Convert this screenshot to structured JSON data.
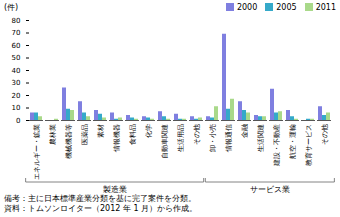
{
  "chart_data": {
    "type": "bar",
    "y_label": "(件)",
    "categories": [
      "エネルギー・鉱業",
      "農林業",
      "機械機器等",
      "医薬品",
      "素材",
      "情報機器",
      "食料品",
      "化学",
      "自動車関連",
      "生活用品",
      "その他",
      "卸・小売",
      "情報通信",
      "金融",
      "生活関連",
      "建設・不動産",
      "航空・運輸",
      "教育サービス",
      "その他"
    ],
    "series": [
      {
        "name": "2000",
        "color": "#7f7fe0",
        "values": [
          6,
          0,
          26,
          15,
          8,
          6,
          4,
          3,
          7,
          5,
          3,
          3,
          69,
          15,
          4,
          25,
          8,
          0,
          11
        ]
      },
      {
        "name": "2005",
        "color": "#35a9c9",
        "values": [
          6,
          0,
          9,
          6,
          5,
          1,
          2,
          2,
          3,
          1,
          1,
          2,
          9,
          8,
          3,
          6,
          3,
          1,
          4
        ]
      },
      {
        "name": "2011",
        "color": "#a9d98a",
        "values": [
          3,
          1,
          8,
          3,
          2,
          2,
          1,
          1,
          1,
          1,
          2,
          11,
          17,
          6,
          3,
          7,
          1,
          1,
          6
        ]
      }
    ],
    "groups": [
      {
        "name": "製造業",
        "count": 11
      },
      {
        "name": "サービス業",
        "count": 8
      }
    ],
    "ylim": [
      0,
      80
    ],
    "yticks": [
      0,
      10,
      20,
      30,
      40,
      50,
      60,
      70,
      80
    ],
    "grid": false,
    "legend": "top-right",
    "notes": [
      "備考：主に日本標準産業分類を基に完了案件を分類。",
      "資料：トムソンロイター（2012 年 1 月）から作成。"
    ]
  }
}
